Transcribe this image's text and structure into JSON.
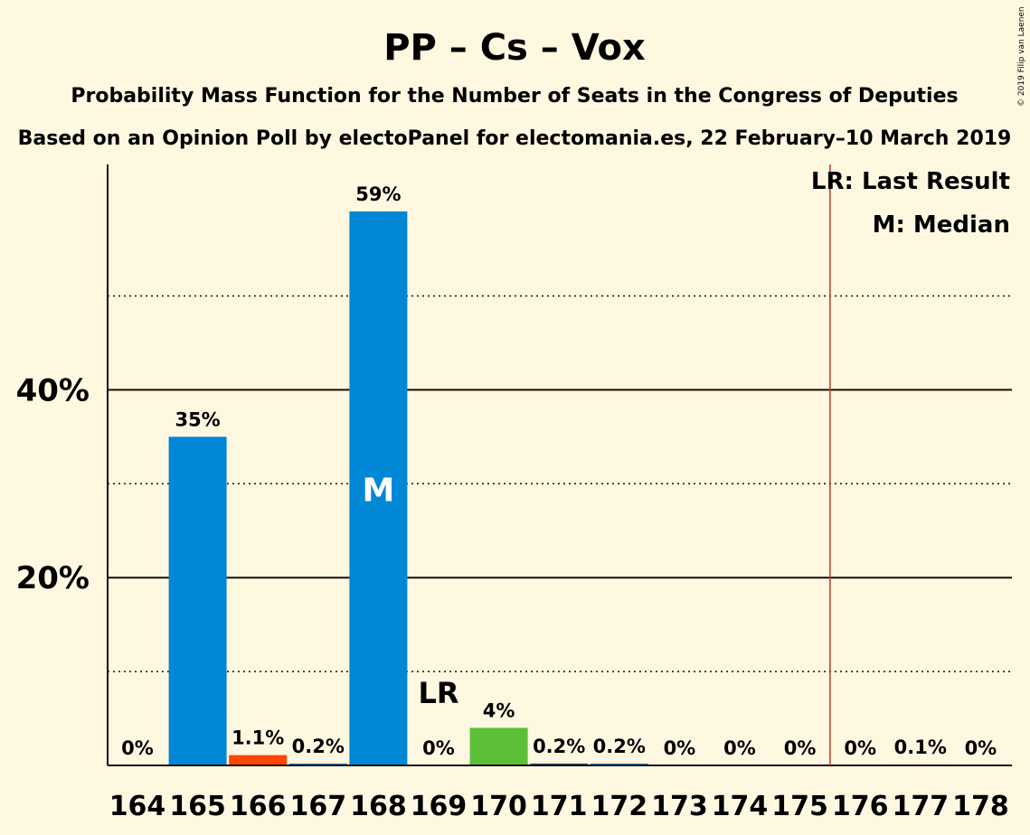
{
  "chart_data": {
    "type": "bar",
    "title": "PP – Cs – Vox",
    "subtitle": "Probability Mass Function for the Number of Seats in the Congress of Deputies",
    "subtitle2": "Based on an Opinion Poll by electoPanel for electomania.es, 22 February–10 March 2019",
    "copyright": "© 2019 Filip van Laenen",
    "categories": [
      "164",
      "165",
      "166",
      "167",
      "168",
      "169",
      "170",
      "171",
      "172",
      "173",
      "174",
      "175",
      "176",
      "177",
      "178"
    ],
    "values": [
      0,
      35,
      1.1,
      0.2,
      59,
      0,
      4,
      0.2,
      0.2,
      0,
      0,
      0,
      0,
      0.1,
      0
    ],
    "value_labels": [
      "0%",
      "35%",
      "1.1%",
      "0.2%",
      "59%",
      "0%",
      "4%",
      "0.2%",
      "0.2%",
      "0%",
      "0%",
      "0%",
      "0%",
      "0.1%",
      "0%"
    ],
    "bar_colors": [
      "#0088D6",
      "#0088D6",
      "#FF4500",
      "#0088D6",
      "#0088D6",
      "#0088D6",
      "#5CBF38",
      "#0E5A8A",
      "#0088D6",
      "#0088D6",
      "#0088D6",
      "#0088D6",
      "#0088D6",
      "#0088D6",
      "#0088D6"
    ],
    "ylim": [
      0,
      64
    ],
    "yticks_major": [
      20,
      40
    ],
    "ytick_labels": [
      "20%",
      "40%"
    ],
    "yticks_minor": [
      10,
      30,
      50
    ],
    "median_category": "168",
    "median_marker": "M",
    "last_result_category": "169",
    "last_result_marker": "LR",
    "majority_line_after": "175",
    "majority_color": "#C0392B",
    "legend": [
      "LR: Last Result",
      "M: Median"
    ],
    "legend_position": "top-right"
  }
}
